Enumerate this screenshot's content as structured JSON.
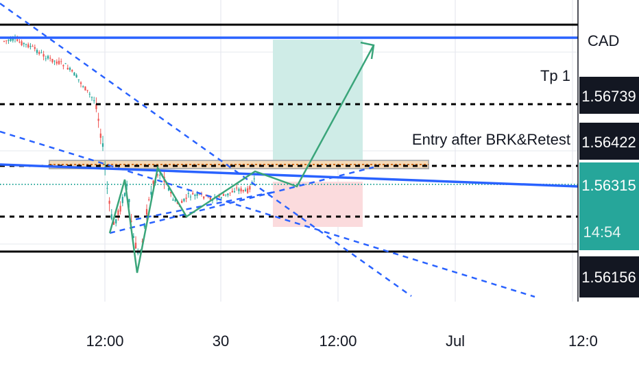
{
  "chart_data": {
    "type": "candlestick",
    "instrument_label": "CAD",
    "x_ticks": [
      "12:00",
      "30",
      "12:00",
      "Jul",
      "12:0"
    ],
    "price_labels": [
      {
        "value": "1.56739",
        "kind": "level"
      },
      {
        "value": "1.56422",
        "kind": "level"
      },
      {
        "value": "1.56315",
        "kind": "current"
      },
      {
        "value": "14:54",
        "kind": "countdown"
      },
      {
        "value": "1.56156",
        "kind": "level"
      }
    ],
    "annotations": [
      "Tp 1",
      "Entry after BRK&Retest"
    ],
    "levels": [
      1.56739,
      1.56422,
      1.56315,
      1.56156
    ],
    "colors": {
      "up": "#26a69a",
      "down": "#ef5350",
      "trendline": "#2962ff",
      "target_zone": "#cfece7",
      "stop_zone": "#fbdbdd",
      "path": "#3aa57a",
      "current_price": "#26a69a"
    }
  }
}
